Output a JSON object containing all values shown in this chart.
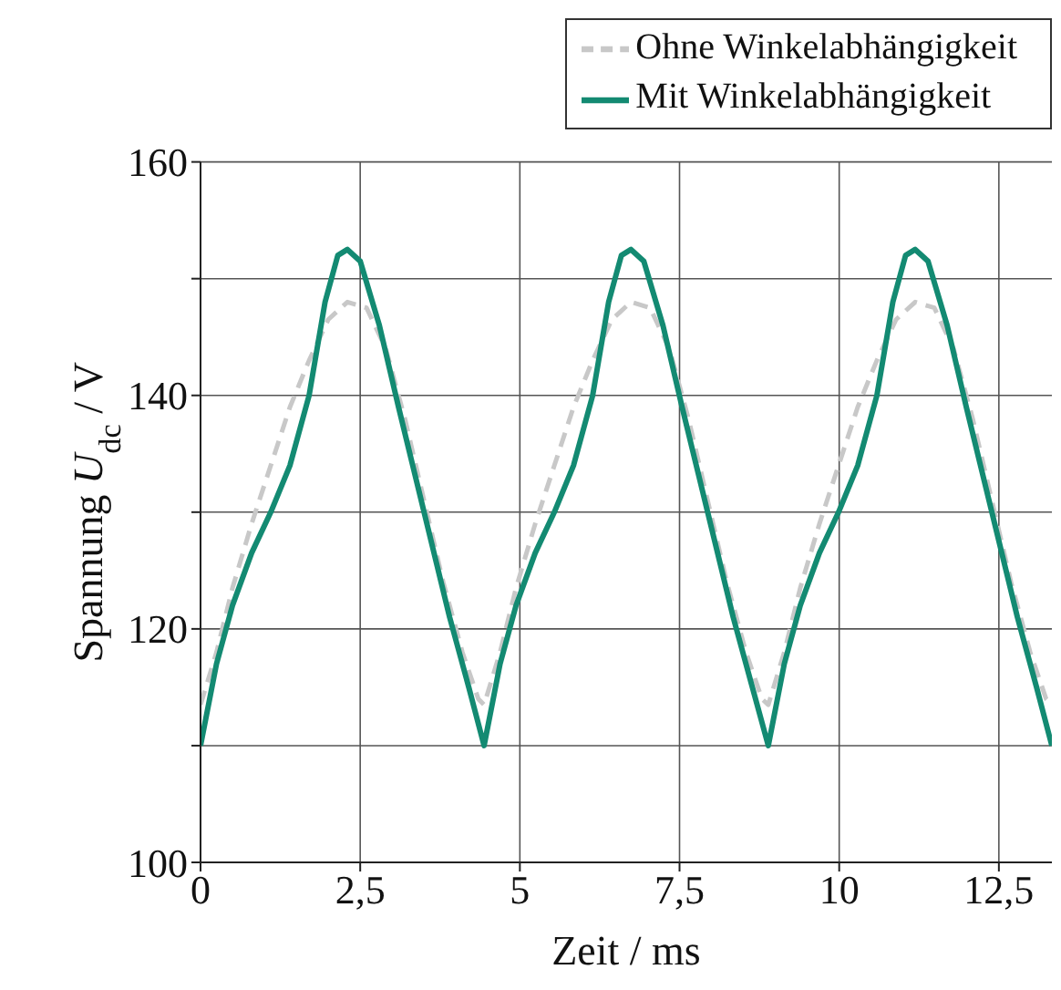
{
  "chart_data": {
    "type": "line",
    "xlabel": "Zeit / ms",
    "ylabel": "Spannung U$_{dc}$ / V",
    "xlim": [
      0,
      13.33
    ],
    "ylim": [
      100,
      160
    ],
    "xticks": [
      0,
      {
        "value": 2.5,
        "label": "2,5"
      },
      5,
      {
        "value": 7.5,
        "label": "7,5"
      },
      10,
      {
        "value": 12.5,
        "label": "12,5"
      }
    ],
    "yticks": [
      100,
      {
        "value": 110,
        "label": null
      },
      120,
      {
        "value": 130,
        "label": null
      },
      140,
      {
        "value": 150,
        "label": null
      },
      160
    ],
    "grid": true,
    "legend": "top right",
    "marker": "none",
    "series": [
      {
        "name": "Ohne Winkelabhängigkeit",
        "color": "#c8c8c8",
        "line_style": "dashed",
        "x": [
          0,
          0.25,
          0.5,
          0.8,
          1.1,
          1.4,
          1.7,
          2.0,
          2.3,
          2.6,
          2.9,
          3.2,
          3.5,
          3.8,
          4.1,
          4.35,
          4.44,
          4.69,
          4.94,
          5.24,
          5.54,
          5.84,
          6.14,
          6.44,
          6.74,
          7.04,
          7.34,
          7.64,
          7.94,
          8.24,
          8.54,
          8.79,
          8.89,
          9.14,
          9.39,
          9.69,
          9.99,
          10.29,
          10.59,
          10.89,
          11.19,
          11.49,
          11.79,
          12.09,
          12.39,
          12.69,
          12.99,
          13.24,
          13.33
        ],
        "values": [
          113.5,
          118,
          123.5,
          129,
          134,
          139,
          143,
          146.5,
          148,
          147.5,
          144,
          138,
          131,
          124,
          118,
          114,
          113.5,
          118,
          123.5,
          129,
          134,
          139,
          143,
          146.5,
          148,
          147.5,
          144,
          138,
          131,
          124,
          118,
          114,
          113.5,
          118,
          123.5,
          129,
          134,
          139,
          143,
          146.5,
          148,
          147.5,
          144,
          138,
          131,
          124,
          118,
          114,
          113.5
        ]
      },
      {
        "name": "Mit Winkelabhängigkeit",
        "color": "#138a72",
        "line_style": "solid",
        "x": [
          0,
          0.25,
          0.5,
          0.8,
          1.1,
          1.4,
          1.7,
          1.95,
          2.15,
          2.3,
          2.5,
          2.8,
          3.1,
          3.5,
          3.9,
          4.2,
          4.44,
          4.69,
          4.94,
          5.24,
          5.54,
          5.84,
          6.14,
          6.39,
          6.59,
          6.74,
          6.94,
          7.24,
          7.54,
          7.94,
          8.34,
          8.64,
          8.89,
          9.14,
          9.39,
          9.69,
          9.99,
          10.29,
          10.59,
          10.84,
          11.04,
          11.19,
          11.39,
          11.69,
          11.99,
          12.39,
          12.79,
          13.09,
          13.33
        ],
        "values": [
          110,
          117,
          122,
          126.5,
          130,
          134,
          140,
          148,
          152,
          152.5,
          151.5,
          146,
          139,
          130,
          121,
          115,
          110,
          117,
          122,
          126.5,
          130,
          134,
          140,
          148,
          152,
          152.5,
          151.5,
          146,
          139,
          130,
          121,
          115,
          110,
          117,
          122,
          126.5,
          130,
          134,
          140,
          148,
          152,
          152.5,
          151.5,
          146,
          139,
          130,
          121,
          115,
          110
        ]
      }
    ]
  }
}
